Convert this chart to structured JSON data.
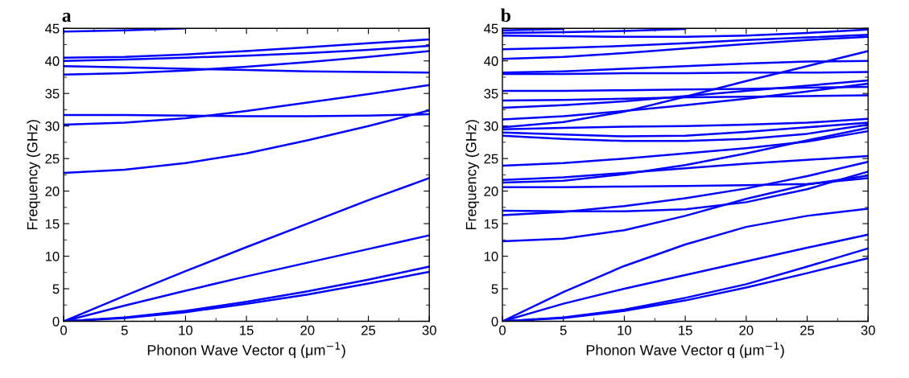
{
  "chart_data": [
    {
      "type": "line",
      "title": "a",
      "xlabel": "Phonon Wave Vector q (μm$^{−1}$)",
      "ylabel": "Frequency (GHz)",
      "x": [
        0,
        5,
        10,
        15,
        20,
        25,
        30
      ],
      "xlim": [
        0,
        30
      ],
      "ylim": [
        0,
        45
      ],
      "xticks": [
        0,
        5,
        10,
        15,
        20,
        25,
        30
      ],
      "yticks": [
        0,
        5,
        10,
        15,
        20,
        25,
        30,
        35,
        40,
        45
      ],
      "marker": "none",
      "line_style": "solid",
      "series": [
        {
          "color": "#0000ff",
          "values": [
            0,
            0.5,
            1.4,
            2.7,
            4.1,
            5.8,
            7.6
          ]
        },
        {
          "color": "#0000ff",
          "values": [
            0,
            0.6,
            1.6,
            3.0,
            4.6,
            6.4,
            8.4
          ]
        },
        {
          "color": "#0000ff",
          "values": [
            0,
            2.4,
            4.7,
            6.9,
            9.0,
            11.1,
            13.2
          ]
        },
        {
          "color": "#0000ff",
          "values": [
            0,
            3.9,
            7.7,
            11.4,
            15.0,
            18.6,
            22.0
          ]
        },
        {
          "color": "#0000ff",
          "values": [
            22.8,
            23.3,
            24.3,
            25.8,
            27.8,
            30.0,
            32.4
          ]
        },
        {
          "color": "#0000ff",
          "values": [
            30.2,
            30.5,
            31.2,
            32.3,
            33.6,
            34.9,
            36.3
          ]
        },
        {
          "color": "#0000ff",
          "values": [
            31.7,
            31.7,
            31.6,
            31.5,
            31.5,
            31.6,
            31.8
          ]
        },
        {
          "color": "#0000ff",
          "values": [
            37.9,
            38.1,
            38.5,
            39.1,
            39.8,
            40.6,
            41.5
          ]
        },
        {
          "color": "#0000ff",
          "values": [
            39.2,
            39.0,
            38.8,
            38.6,
            38.4,
            38.3,
            38.2
          ]
        },
        {
          "color": "#0000ff",
          "values": [
            40.0,
            40.2,
            40.5,
            40.8,
            41.2,
            41.7,
            42.3
          ]
        },
        {
          "color": "#0000ff",
          "values": [
            40.5,
            40.6,
            41.0,
            41.5,
            42.1,
            42.7,
            43.3
          ]
        },
        {
          "color": "#0000ff",
          "values": [
            44.5,
            44.7,
            45.0,
            null,
            null,
            null,
            null
          ]
        }
      ]
    },
    {
      "type": "line",
      "title": "b",
      "xlabel": "Phonon Wave Vector q (μm$^{−1}$)",
      "ylabel": "Frequency (GHz)",
      "x": [
        0,
        5,
        10,
        15,
        20,
        25,
        30
      ],
      "xlim": [
        0,
        30
      ],
      "ylim": [
        0,
        45
      ],
      "xticks": [
        0,
        5,
        10,
        15,
        20,
        25,
        30
      ],
      "yticks": [
        0,
        5,
        10,
        15,
        20,
        25,
        30,
        35,
        40,
        45
      ],
      "marker": "none",
      "line_style": "solid",
      "series": [
        {
          "color": "#0000ff",
          "values": [
            0,
            0.5,
            1.6,
            3.2,
            5.2,
            7.4,
            9.7
          ]
        },
        {
          "color": "#0000ff",
          "values": [
            0,
            0.6,
            1.8,
            3.6,
            5.7,
            8.4,
            11.2
          ]
        },
        {
          "color": "#0000ff",
          "values": [
            0,
            2.7,
            5.0,
            7.1,
            9.2,
            11.3,
            13.3
          ]
        },
        {
          "color": "#0000ff",
          "values": [
            0,
            4.5,
            8.5,
            11.8,
            14.5,
            16.2,
            17.3
          ]
        },
        {
          "color": "#0000ff",
          "values": [
            12.3,
            12.7,
            14.0,
            16.2,
            18.8,
            21.0,
            22.4
          ]
        },
        {
          "color": "#0000ff",
          "values": [
            16.3,
            16.8,
            17.7,
            18.9,
            20.4,
            22.3,
            24.5
          ]
        },
        {
          "color": "#0000ff",
          "values": [
            17.0,
            16.9,
            16.9,
            17.2,
            18.3,
            20.3,
            23.0
          ]
        },
        {
          "color": "#0000ff",
          "values": [
            20.6,
            20.6,
            20.7,
            20.8,
            20.9,
            21.1,
            22.0
          ]
        },
        {
          "color": "#0000ff",
          "values": [
            21.3,
            21.6,
            22.6,
            24.0,
            25.8,
            27.8,
            29.7
          ]
        },
        {
          "color": "#0000ff",
          "values": [
            21.7,
            22.1,
            22.8,
            23.5,
            24.2,
            24.8,
            25.4
          ]
        },
        {
          "color": "#0000ff",
          "values": [
            23.9,
            24.3,
            25.0,
            25.8,
            26.6,
            27.6,
            29.2
          ]
        },
        {
          "color": "#0000ff",
          "values": [
            28.5,
            28.0,
            27.7,
            27.7,
            28.0,
            28.8,
            30.2
          ]
        },
        {
          "color": "#0000ff",
          "values": [
            29.0,
            28.7,
            28.4,
            28.5,
            29.1,
            29.8,
            30.5
          ]
        },
        {
          "color": "#0000ff",
          "values": [
            29.5,
            29.7,
            29.9,
            30.0,
            30.2,
            30.5,
            31.1
          ]
        },
        {
          "color": "#0000ff",
          "values": [
            29.8,
            30.6,
            32.2,
            34.5,
            36.9,
            39.2,
            41.5
          ]
        },
        {
          "color": "#0000ff",
          "values": [
            31.0,
            31.5,
            32.3,
            33.2,
            34.2,
            35.3,
            36.5
          ]
        },
        {
          "color": "#0000ff",
          "values": [
            32.8,
            33.2,
            33.8,
            34.6,
            35.4,
            36.2,
            37.0
          ]
        },
        {
          "color": "#0000ff",
          "values": [
            33.9,
            34.0,
            34.2,
            34.4,
            34.5,
            34.6,
            34.7
          ]
        },
        {
          "color": "#0000ff",
          "values": [
            35.4,
            35.4,
            35.5,
            35.6,
            35.7,
            35.9,
            36.0
          ]
        },
        {
          "color": "#0000ff",
          "values": [
            38.0,
            38.0,
            38.1,
            38.1,
            38.2,
            38.2,
            38.3
          ]
        },
        {
          "color": "#0000ff",
          "values": [
            38.2,
            38.4,
            38.8,
            39.2,
            39.6,
            39.9,
            40.0
          ]
        },
        {
          "color": "#0000ff",
          "values": [
            40.3,
            40.6,
            41.2,
            41.9,
            42.6,
            43.2,
            43.7
          ]
        },
        {
          "color": "#0000ff",
          "values": [
            41.8,
            42.0,
            42.3,
            42.7,
            43.2,
            43.6,
            44.0
          ]
        },
        {
          "color": "#0000ff",
          "values": [
            43.9,
            43.8,
            43.7,
            43.7,
            43.9,
            44.3,
            44.8
          ]
        },
        {
          "color": "#0000ff",
          "values": [
            44.3,
            44.4,
            44.6,
            44.9,
            null,
            null,
            null
          ]
        },
        {
          "color": "#0000ff",
          "values": [
            44.7,
            44.9,
            null,
            null,
            null,
            null,
            null
          ]
        }
      ]
    }
  ]
}
